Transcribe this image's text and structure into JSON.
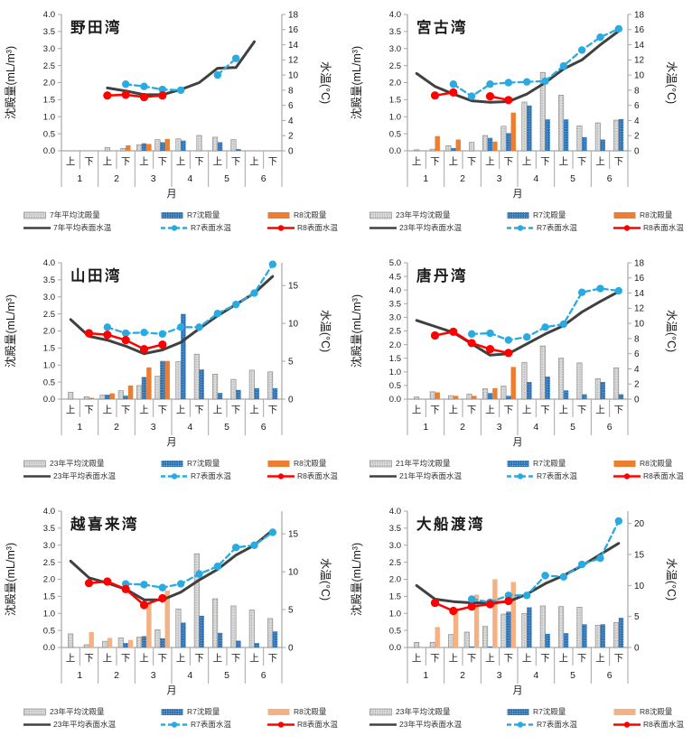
{
  "page": {
    "background": "#ffffff",
    "layout": "2x3 grid of bay monitoring charts"
  },
  "colors": {
    "axis": "#a6a6a6",
    "tick_text": "#1a1a1a",
    "avg_bar_fill": "#d9d9d9",
    "avg_bar_dot": "#8c8c8c",
    "avg_bar_stroke": "#7f7f7f",
    "r7_bar_fill": "#2e74b5",
    "r7_bar_dot": "#bdd7f0",
    "r8_bar_dark": "#ed7d31",
    "r8_bar_light": "#f4b183",
    "avg_line": "#404040",
    "r7_line": "#29abe2",
    "r8_line": "#ff0000"
  },
  "x_axis": {
    "half_labels": [
      "上",
      "下"
    ],
    "month_labels": [
      "1",
      "2",
      "3",
      "4",
      "5",
      "6"
    ],
    "axis_label": "月"
  },
  "chart_data": [
    {
      "type": "bar+line combo",
      "title": "野田湾",
      "ylabel_left": "沈殿量(mL/m³)",
      "ylabel_right": "水温(°C)",
      "xlabel": "月",
      "categories": [
        "1上",
        "1下",
        "2上",
        "2下",
        "3上",
        "3下",
        "4上",
        "4下",
        "5上",
        "5下",
        "6上",
        "6下"
      ],
      "ylim_left": [
        0,
        4.0
      ],
      "yticks_left_step": 0.5,
      "ylim_right": [
        0,
        18
      ],
      "yticks_right": [
        0,
        2,
        4,
        6,
        8,
        10,
        12,
        14,
        16,
        18
      ],
      "legend_position": "bottom",
      "bar_series": [
        {
          "name": "7年平均沈殿量",
          "role": "avg",
          "unit": "mL/m³",
          "values": [
            0,
            0,
            0.1,
            0.07,
            0.18,
            0.33,
            0.35,
            0.45,
            0.4,
            0.33,
            0,
            0
          ]
        },
        {
          "name": "R7沈殿量",
          "role": "r7",
          "unit": "mL/m³",
          "values": [
            0,
            0,
            0,
            0,
            0.22,
            0.25,
            0.3,
            0,
            0.25,
            0.05,
            0,
            0
          ]
        },
        {
          "name": "R8沈殿量",
          "role": "r8",
          "unit": "mL/m³",
          "color": "#ed7d31",
          "values": [
            0,
            0,
            0,
            0.16,
            0.2,
            0.35,
            0,
            0,
            0,
            0,
            0,
            0
          ]
        }
      ],
      "line_series": [
        {
          "name": "7年平均表面水温",
          "role": "avg",
          "unit": "°C",
          "values": [
            null,
            null,
            8.3,
            7.9,
            7.4,
            7.4,
            8.1,
            9.0,
            10.9,
            11.0,
            14.4,
            null
          ]
        },
        {
          "name": "R7表面水温",
          "role": "r7",
          "unit": "°C",
          "values": [
            null,
            null,
            null,
            8.8,
            8.5,
            8.1,
            8.0,
            null,
            10.0,
            12.2,
            null,
            null
          ]
        },
        {
          "name": "R8表面水温",
          "role": "r8",
          "unit": "°C",
          "values": [
            null,
            null,
            7.3,
            7.4,
            7.1,
            7.3,
            null,
            null,
            null,
            null,
            null,
            null
          ]
        }
      ]
    },
    {
      "type": "bar+line combo",
      "title": "宮古湾",
      "ylabel_left": "沈殿量(mL/m³)",
      "ylabel_right": "水温(°C)",
      "xlabel": "月",
      "categories": [
        "1上",
        "1下",
        "2上",
        "2下",
        "3上",
        "3下",
        "4上",
        "4下",
        "5上",
        "5下",
        "6上",
        "6下"
      ],
      "ylim_left": [
        0,
        4.0
      ],
      "yticks_left_step": 0.5,
      "ylim_right": [
        0,
        18
      ],
      "yticks_right": [
        0,
        2,
        4,
        6,
        8,
        10,
        12,
        14,
        16,
        18
      ],
      "legend_position": "bottom",
      "bar_series": [
        {
          "name": "23年平均沈殿量",
          "role": "avg",
          "unit": "mL/m³",
          "values": [
            0.03,
            0.05,
            0.15,
            0.25,
            0.45,
            0.72,
            1.43,
            2.3,
            1.63,
            0.73,
            0.82,
            0.9
          ]
        },
        {
          "name": "R7沈殿量",
          "role": "r7",
          "unit": "mL/m³",
          "values": [
            0,
            0,
            0.08,
            0,
            0.38,
            0.52,
            1.33,
            0.92,
            0.92,
            0.4,
            0.33,
            0.93
          ]
        },
        {
          "name": "R8沈殿量",
          "role": "r8",
          "unit": "mL/m³",
          "color": "#ed7d31",
          "values": [
            0,
            0.43,
            0.33,
            0,
            0.27,
            1.12,
            0,
            0,
            0,
            0,
            0,
            0
          ]
        }
      ],
      "line_series": [
        {
          "name": "23年平均表面水温",
          "role": "avg",
          "unit": "°C",
          "values": [
            10.2,
            8.5,
            7.5,
            6.6,
            6.4,
            6.5,
            7.5,
            9.0,
            10.8,
            12.0,
            14.0,
            15.8
          ]
        },
        {
          "name": "R7表面水温",
          "role": "r7",
          "unit": "°C",
          "values": [
            null,
            null,
            8.8,
            7.2,
            8.8,
            9.0,
            9.1,
            9.2,
            11.2,
            13.3,
            15.0,
            16.1
          ]
        },
        {
          "name": "R8表面水温",
          "role": "r8",
          "unit": "°C",
          "values": [
            null,
            7.3,
            7.7,
            null,
            7.2,
            6.7,
            null,
            null,
            null,
            null,
            null,
            null
          ]
        }
      ]
    },
    {
      "type": "bar+line combo",
      "title": "山田湾",
      "ylabel_left": "沈殿量(mL/m³)",
      "ylabel_right": "水温(°C)",
      "xlabel": "月",
      "categories": [
        "1上",
        "1下",
        "2上",
        "2下",
        "3上",
        "3下",
        "4上",
        "4下",
        "5上",
        "5下",
        "6上",
        "6下"
      ],
      "ylim_left": [
        0,
        4.0
      ],
      "yticks_left_step": 0.5,
      "ylim_right": [
        0,
        18
      ],
      "yticks_right": [
        0,
        5,
        10,
        15
      ],
      "legend_position": "bottom",
      "bar_series": [
        {
          "name": "23年平均沈殿量",
          "role": "avg",
          "unit": "mL/m³",
          "values": [
            0.2,
            0.07,
            0.12,
            0.25,
            0.4,
            0.67,
            1.1,
            1.32,
            0.73,
            0.58,
            0.85,
            0.8
          ]
        },
        {
          "name": "R7沈殿量",
          "role": "r7",
          "unit": "mL/m³",
          "values": [
            0,
            0,
            0.13,
            0.1,
            0.65,
            1.12,
            2.5,
            0.87,
            0.18,
            0.27,
            0.32,
            0.32
          ]
        },
        {
          "name": "R8沈殿量",
          "role": "r8",
          "unit": "mL/m³",
          "color": "#ed7d31",
          "values": [
            0,
            0.04,
            0.17,
            0.4,
            0.93,
            1.12,
            0,
            0,
            0,
            0,
            0,
            0
          ]
        }
      ],
      "line_series": [
        {
          "name": "23年平均表面水温",
          "role": "avg",
          "unit": "°C",
          "values": [
            10.5,
            8.3,
            7.8,
            7.0,
            6.0,
            6.5,
            7.5,
            9.3,
            11.0,
            12.5,
            14.0,
            16.2
          ]
        },
        {
          "name": "R7表面水温",
          "role": "r7",
          "unit": "°C",
          "values": [
            null,
            null,
            9.5,
            8.7,
            8.8,
            8.6,
            9.5,
            9.5,
            11.3,
            12.5,
            14.0,
            17.8
          ]
        },
        {
          "name": "R8表面水温",
          "role": "r8",
          "unit": "°C",
          "values": [
            null,
            8.7,
            8.5,
            7.8,
            6.6,
            7.2,
            null,
            null,
            null,
            null,
            null,
            null
          ]
        }
      ]
    },
    {
      "type": "bar+line combo",
      "title": "唐丹湾",
      "ylabel_left": "沈殿量(mL/m³)",
      "ylabel_right": "水温(°C)",
      "xlabel": "月",
      "categories": [
        "1上",
        "1下",
        "2上",
        "2下",
        "3上",
        "3下",
        "4上",
        "4下",
        "5上",
        "5下",
        "6上",
        "6下"
      ],
      "ylim_left": [
        0,
        5.0
      ],
      "yticks_left_step": 0.5,
      "ylim_right": [
        0,
        18
      ],
      "yticks_right": [
        0,
        2,
        4,
        6,
        8,
        10,
        12,
        14,
        16,
        18
      ],
      "legend_position": "bottom",
      "bar_series": [
        {
          "name": "21年平均沈殿量",
          "role": "avg",
          "unit": "mL/m³",
          "values": [
            0.08,
            0.27,
            0.13,
            0.18,
            0.38,
            0.48,
            1.35,
            1.95,
            1.5,
            1.33,
            0.75,
            1.15
          ]
        },
        {
          "name": "R7沈殿量",
          "role": "r7",
          "unit": "mL/m³",
          "values": [
            0,
            0,
            0,
            0,
            0.22,
            0.12,
            0.63,
            0.83,
            0.32,
            0.18,
            0.63,
            0.18
          ]
        },
        {
          "name": "R8沈殿量",
          "role": "r8",
          "unit": "mL/m³",
          "color": "#ed7d31",
          "values": [
            0,
            0.25,
            0.12,
            0.12,
            0.4,
            1.18,
            0,
            0,
            0,
            0,
            0,
            0
          ]
        }
      ],
      "line_series": [
        {
          "name": "21年平均表面水温",
          "role": "avg",
          "unit": "°C",
          "values": [
            10.4,
            9.6,
            8.8,
            7.3,
            5.8,
            6.0,
            7.3,
            8.6,
            9.7,
            11.5,
            12.9,
            14.2
          ]
        },
        {
          "name": "R7表面水温",
          "role": "r7",
          "unit": "°C",
          "values": [
            null,
            null,
            null,
            8.6,
            8.7,
            7.8,
            8.2,
            9.5,
            9.9,
            14.1,
            14.6,
            14.3
          ]
        },
        {
          "name": "R8表面水温",
          "role": "r8",
          "unit": "°C",
          "values": [
            null,
            8.4,
            8.9,
            7.4,
            6.6,
            6.1,
            null,
            null,
            null,
            null,
            null,
            null
          ]
        }
      ]
    },
    {
      "type": "bar+line combo",
      "title": "越喜来湾",
      "ylabel_left": "沈殿量(mL/m³)",
      "ylabel_right": "水温(°C)",
      "xlabel": "月",
      "categories": [
        "1上",
        "1下",
        "2上",
        "2下",
        "3上",
        "3下",
        "4上",
        "4下",
        "5上",
        "5下",
        "6上",
        "6下"
      ],
      "ylim_left": [
        0,
        4.0
      ],
      "yticks_left_step": 0.5,
      "ylim_right": [
        0,
        18
      ],
      "yticks_right": [
        0,
        5,
        10,
        15
      ],
      "legend_position": "bottom",
      "bar_series": [
        {
          "name": "23年平均沈殿量",
          "role": "avg",
          "unit": "mL/m³",
          "values": [
            0.4,
            0.08,
            0.18,
            0.28,
            0.3,
            0.52,
            1.13,
            2.75,
            1.43,
            1.22,
            1.1,
            0.85
          ]
        },
        {
          "name": "R7沈殿量",
          "role": "r7",
          "unit": "mL/m³",
          "values": [
            0,
            0,
            0,
            0.13,
            0.33,
            0.27,
            0.73,
            0.93,
            0.43,
            0.2,
            0.13,
            0.47
          ]
        },
        {
          "name": "R8沈殿量",
          "role": "r8",
          "unit": "mL/m³",
          "color": "#f4b183",
          "values": [
            0,
            0.45,
            0.28,
            0.22,
            1.33,
            1.67,
            0,
            0,
            0,
            0,
            0,
            0
          ]
        }
      ],
      "line_series": [
        {
          "name": "23年平均表面水温",
          "role": "avg",
          "unit": "°C",
          "values": [
            11.4,
            9.2,
            8.5,
            7.7,
            6.3,
            6.3,
            7.3,
            8.9,
            10.3,
            12.2,
            13.5,
            15.5
          ]
        },
        {
          "name": "R7表面水温",
          "role": "r7",
          "unit": "°C",
          "values": [
            null,
            null,
            null,
            8.4,
            8.3,
            7.9,
            8.4,
            9.7,
            10.7,
            13.2,
            13.5,
            15.2
          ]
        },
        {
          "name": "R8表面水温",
          "role": "r8",
          "unit": "°C",
          "values": [
            null,
            8.5,
            8.7,
            7.7,
            5.6,
            6.5,
            null,
            null,
            null,
            null,
            null,
            null
          ]
        }
      ]
    },
    {
      "type": "bar+line combo",
      "title": "大船渡湾",
      "ylabel_left": "沈殿量(mL/m³)",
      "ylabel_right": "水温(°C)",
      "xlabel": "月",
      "categories": [
        "1上",
        "1下",
        "2上",
        "2下",
        "3上",
        "3下",
        "4上",
        "4下",
        "5上",
        "5下",
        "6上",
        "6下"
      ],
      "ylim_left": [
        0,
        4.0
      ],
      "yticks_left_step": 0.5,
      "ylim_right": [
        0,
        22
      ],
      "yticks_right": [
        0,
        5,
        10,
        15,
        20
      ],
      "legend_position": "bottom",
      "bar_series": [
        {
          "name": "23年平均沈殿量",
          "role": "avg",
          "unit": "mL/m³",
          "values": [
            0.15,
            0.15,
            0.38,
            0.45,
            0.62,
            0.98,
            1.0,
            1.22,
            1.2,
            1.18,
            0.65,
            0.73
          ]
        },
        {
          "name": "R7沈殿量",
          "role": "r7",
          "unit": "mL/m³",
          "values": [
            0,
            0,
            0,
            0.03,
            0.03,
            1.05,
            1.18,
            0.4,
            0.42,
            0.68,
            0.68,
            0.87
          ]
        },
        {
          "name": "R8沈殿量",
          "role": "r8",
          "unit": "mL/m³",
          "color": "#f4b183",
          "values": [
            0,
            0.6,
            1.15,
            1.55,
            2.0,
            1.92,
            0,
            0,
            0,
            0,
            0,
            0
          ]
        }
      ],
      "line_series": [
        {
          "name": "23年平均表面水温",
          "role": "avg",
          "unit": "°C",
          "values": [
            10.0,
            7.8,
            7.4,
            7.2,
            7.2,
            7.4,
            8.6,
            10.3,
            11.6,
            13.2,
            15.0,
            16.8
          ]
        },
        {
          "name": "R7表面水温",
          "role": "r7",
          "unit": "°C",
          "values": [
            null,
            null,
            null,
            7.8,
            7.3,
            8.4,
            8.4,
            11.6,
            11.4,
            13.4,
            14.4,
            20.4
          ]
        },
        {
          "name": "R8表面水温",
          "role": "r8",
          "unit": "°C",
          "values": [
            null,
            7.2,
            5.9,
            6.6,
            7.0,
            7.5,
            null,
            null,
            null,
            null,
            null,
            null
          ]
        }
      ]
    }
  ]
}
